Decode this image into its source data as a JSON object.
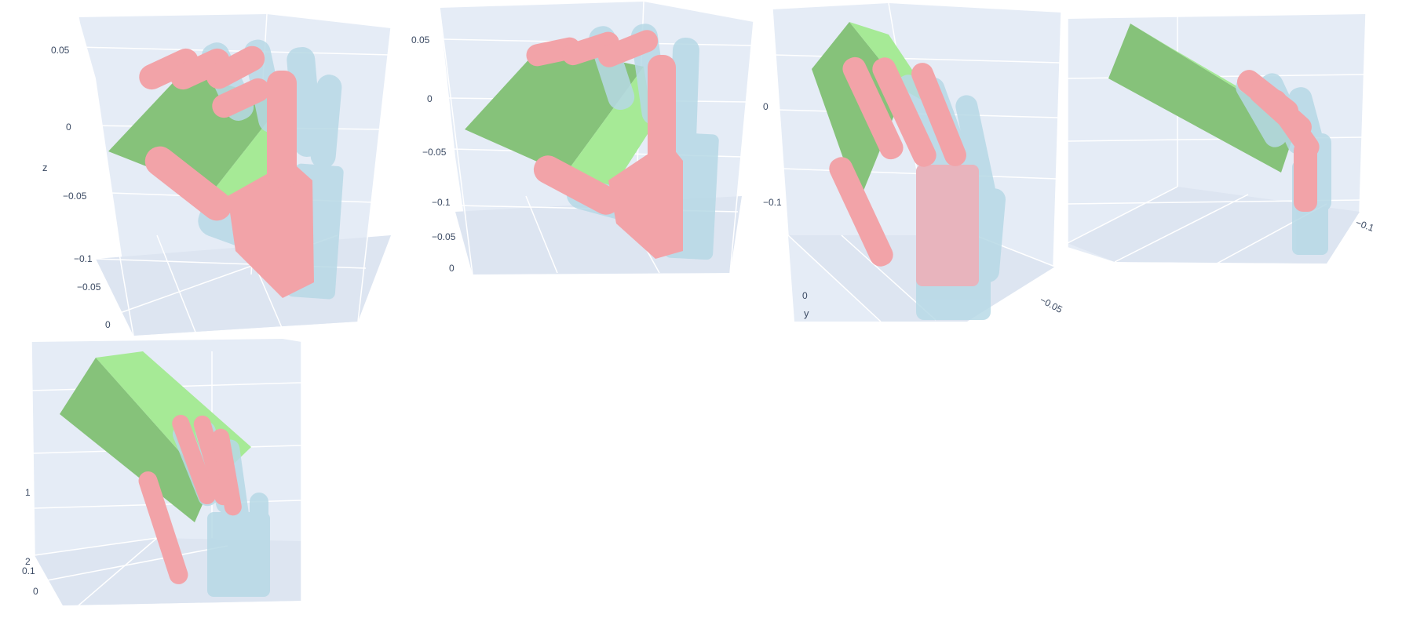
{
  "colors": {
    "plot_bg": "#e5ecf6",
    "grid": "#ffffff",
    "object": "#86d67a",
    "object_light": "#a6ea96",
    "hand_pred": "#f2a3a8",
    "hand_gt": "#b7d9e6",
    "tick_text": "#3b4a63"
  },
  "scenes": [
    {
      "id": "scene-1",
      "axis_title": "z",
      "ticks": [
        "0.05",
        "0",
        "−0.05",
        "−0.1",
        "−0.05",
        "0"
      ]
    },
    {
      "id": "scene-2",
      "axis_title": "",
      "ticks": [
        "0.05",
        "0",
        "−0.05",
        "−0.1",
        "−0.05",
        "0"
      ]
    },
    {
      "id": "scene-3",
      "axis_title": "y",
      "ticks": [
        "0",
        "−0.1",
        "0",
        "−0.05"
      ]
    },
    {
      "id": "scene-4",
      "axis_title": "",
      "ticks": [
        "−0.1"
      ]
    },
    {
      "id": "scene-5",
      "axis_title": "",
      "ticks": [
        "1",
        "2",
        "0.1",
        "0"
      ]
    }
  ]
}
